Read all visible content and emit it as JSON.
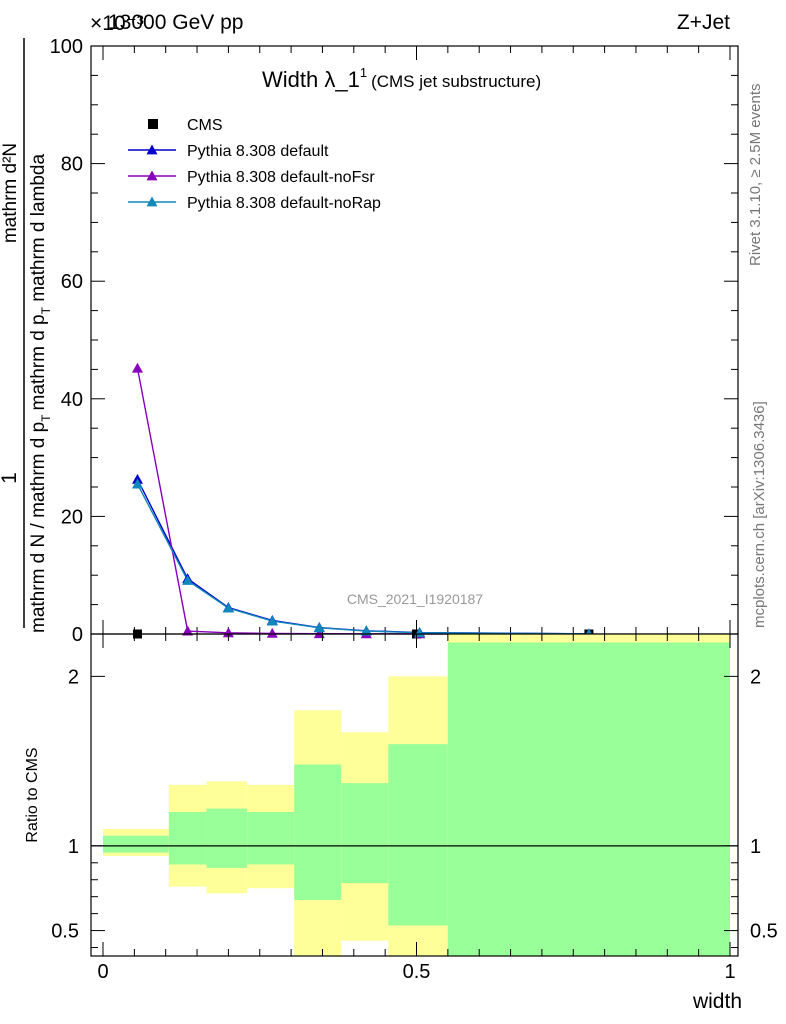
{
  "header": {
    "left": "13000 GeV pp",
    "right": "Z+Jet",
    "exponent": "×10⁻³",
    "side_top": "Rivet 3.1.10, ≥ 2.5M events",
    "side_bottom": "mcplots.cern.ch [arXiv:1306.3436]",
    "watermark": "CMS_2021_I1920187"
  },
  "chart_data": [
    {
      "type": "scatter",
      "title": "Width λ_1",
      "title_sup": "1",
      "subtitle": "(CMS jet substructure)",
      "ylabel_num": "1",
      "ylabel_den": "mathrm d N / mathrm d p",
      "ylabel_num2": "mathrm d²N",
      "ylabel_den2": "mathrm d p",
      "ylabel_tail": " mathrm d lambda",
      "ylim": [
        0,
        100
      ],
      "yticks": [
        "0",
        "20",
        "40",
        "60",
        "80",
        "100"
      ],
      "xlim": [
        0,
        1
      ],
      "legend_placement": "top-left",
      "series": [
        {
          "name": "CMS",
          "color": "#000000",
          "marker": "square",
          "x": [
            0.055,
            0.775,
            0.5
          ],
          "y": [
            0.0,
            0.0,
            0.0
          ]
        },
        {
          "name": "Pythia 8.308 default",
          "color": "#0000cc",
          "marker": "triangle",
          "x": [
            0.055,
            0.135,
            0.2,
            0.27,
            0.345,
            0.42,
            0.505,
            0.775
          ],
          "y": [
            26.3,
            9.4,
            4.5,
            2.3,
            1.1,
            0.55,
            0.25,
            0.02
          ]
        },
        {
          "name": "Pythia 8.308 default-noFsr",
          "color": "#8800bb",
          "marker": "triangle",
          "x": [
            0.055,
            0.135,
            0.2,
            0.27,
            0.345,
            0.42,
            0.505,
            0.775
          ],
          "y": [
            45.2,
            0.5,
            0.2,
            0.1,
            0.05,
            0.03,
            0.02,
            0.0
          ]
        },
        {
          "name": "Pythia 8.308 default-noRap",
          "color": "#1188bb",
          "marker": "triangle",
          "x": [
            0.055,
            0.135,
            0.2,
            0.27,
            0.345,
            0.42,
            0.505,
            0.775
          ],
          "y": [
            25.5,
            9.1,
            4.4,
            2.2,
            1.05,
            0.5,
            0.22,
            0.02
          ]
        }
      ]
    },
    {
      "type": "area",
      "ylabel": "Ratio to CMS",
      "xlabel": "width",
      "ylim": [
        0.35,
        2.25
      ],
      "yticks": [
        "0.5",
        "1",
        "2"
      ],
      "xticks": [
        "0",
        "0.5",
        "1"
      ],
      "reference": 1,
      "bins": [
        {
          "lo": 0.0,
          "hi": 0.105,
          "yellow": [
            0.94,
            1.1
          ],
          "green": [
            0.96,
            1.06
          ]
        },
        {
          "lo": 0.105,
          "hi": 0.165,
          "yellow": [
            0.76,
            1.36
          ],
          "green": [
            0.89,
            1.2
          ]
        },
        {
          "lo": 0.165,
          "hi": 0.23,
          "yellow": [
            0.72,
            1.38
          ],
          "green": [
            0.87,
            1.22
          ]
        },
        {
          "lo": 0.23,
          "hi": 0.305,
          "yellow": [
            0.75,
            1.36
          ],
          "green": [
            0.89,
            1.2
          ]
        },
        {
          "lo": 0.305,
          "hi": 0.38,
          "yellow": [
            0.35,
            1.8
          ],
          "green": [
            0.68,
            1.48
          ]
        },
        {
          "lo": 0.38,
          "hi": 0.455,
          "yellow": [
            0.44,
            1.67
          ],
          "green": [
            0.78,
            1.37
          ]
        },
        {
          "lo": 0.455,
          "hi": 0.55,
          "yellow": [
            0.35,
            2.0
          ],
          "green": [
            0.53,
            1.6
          ]
        },
        {
          "lo": 0.55,
          "hi": 1.0,
          "yellow": [
            0.35,
            2.25
          ],
          "green": [
            0.35,
            2.2
          ]
        }
      ],
      "white_gap": {
        "lo": 0.38,
        "hi": 0.455,
        "range": [
          0.35,
          0.44
        ]
      }
    }
  ],
  "colors": {
    "yellow": "#ffff99",
    "green": "#99ff99"
  }
}
